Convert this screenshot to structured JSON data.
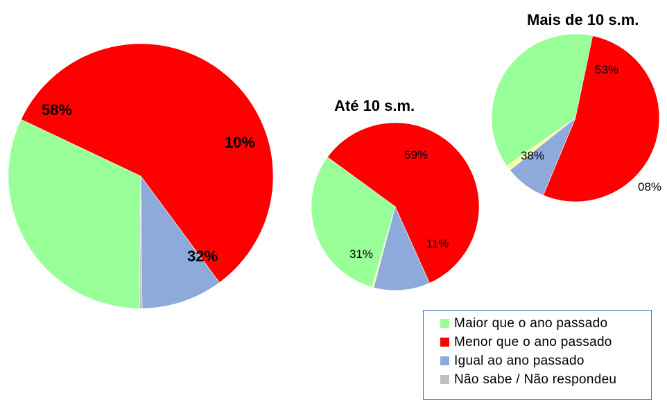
{
  "chart_data": [
    {
      "type": "pie",
      "title": "",
      "slices": [
        {
          "label": "Maior que o ano passado",
          "value": 32,
          "data_label": "32%"
        },
        {
          "label": "Menor que o ano passado",
          "value": 58,
          "data_label": "58%"
        },
        {
          "label": "Igual ao ano passado",
          "value": 10,
          "data_label": "10%"
        },
        {
          "label": "Não sabe / Não respondeu",
          "value": 0.3,
          "data_label": ""
        }
      ]
    },
    {
      "type": "pie",
      "title": "Até 10 s.m.",
      "slices": [
        {
          "label": "Maior que o ano passado",
          "value": 31,
          "data_label": "31%"
        },
        {
          "label": "Menor que o ano passado",
          "value": 59,
          "data_label": "59%"
        },
        {
          "label": "Igual ao ano passado",
          "value": 11,
          "data_label": "11%"
        },
        {
          "label": "Não sabe / Não respondeu",
          "value": 0.3,
          "data_label": ""
        }
      ]
    },
    {
      "type": "pie",
      "title": "Mais de 10 s.m.",
      "slices": [
        {
          "label": "Maior que o ano passado",
          "value": 38,
          "data_label": "38%"
        },
        {
          "label": "Menor que o ano passado",
          "value": 53,
          "data_label": "53%"
        },
        {
          "label": "Igual ao ano passado",
          "value": 8,
          "data_label": "08%"
        },
        {
          "label": "Não sabe / Não respondeu",
          "value": 1,
          "data_label": ""
        }
      ]
    }
  ],
  "legend": {
    "placement": "bottom-right",
    "items": [
      {
        "label": "Maior que o ano passado",
        "color": "#99ff99"
      },
      {
        "label": "Menor que o ano passado",
        "color": "#ff0000"
      },
      {
        "label": "Igual ao ano passado",
        "color": "#8eaadb"
      },
      {
        "label": "Não sabe / Não respondeu",
        "color": "#c0c0c0"
      }
    ]
  },
  "colors": {
    "maior": "#99ff99",
    "menor": "#ff0000",
    "igual": "#8eaadb",
    "nao_sabe": "#c0c0c0",
    "nao_sabe_alt": "#ffff99"
  }
}
